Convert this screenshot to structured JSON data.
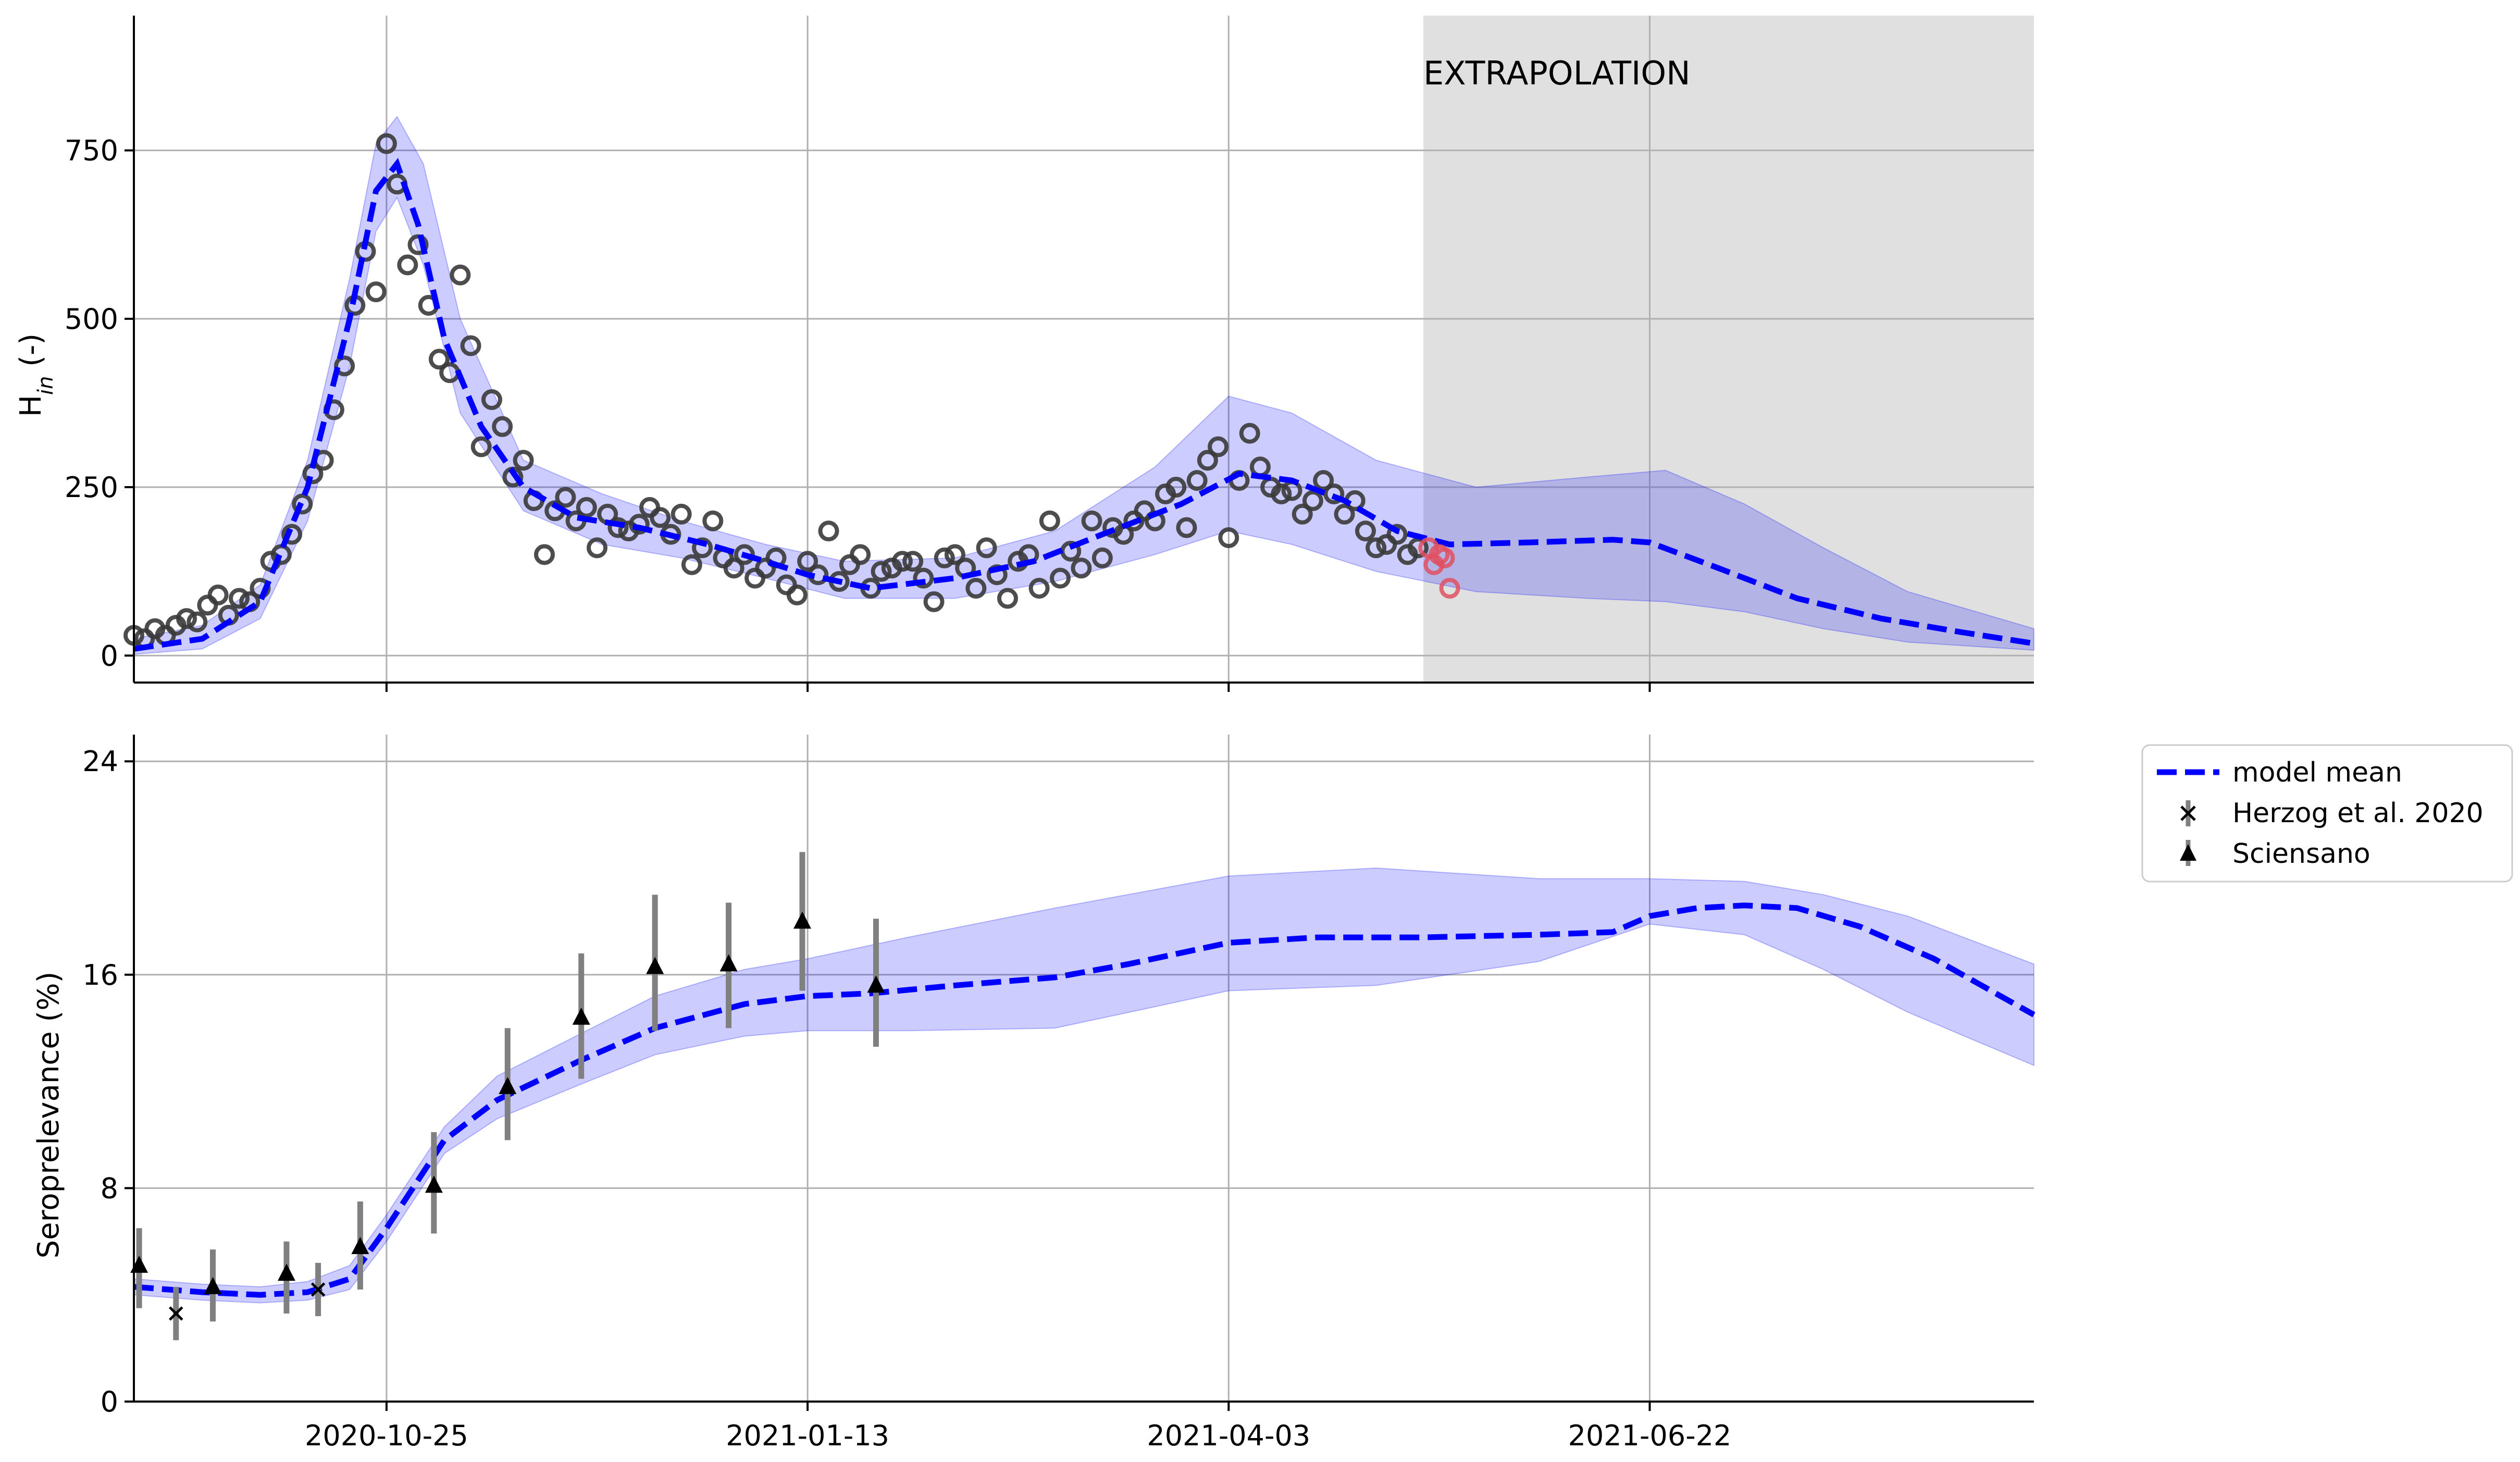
{
  "chart_data": [
    {
      "type": "line",
      "panel": "top",
      "ylabel": "H_in (-)",
      "ylim": [
        -40,
        950
      ],
      "yticks": [
        0,
        250,
        500,
        750
      ],
      "x_dates_range": [
        "2020-09-07",
        "2021-09-03"
      ],
      "xticks": [
        "2020-10-25",
        "2021-01-13",
        "2021-04-03",
        "2021-06-22"
      ],
      "grid": true,
      "annotation": "EXTRAPOLATION",
      "extrapolation_region": [
        "2021-05-10",
        "2021-09-03"
      ],
      "model_mean": {
        "x": [
          "2020-09-07",
          "2020-09-20",
          "2020-10-01",
          "2020-10-10",
          "2020-10-18",
          "2020-10-23",
          "2020-10-27",
          "2020-10-31",
          "2020-11-05",
          "2020-11-12",
          "2020-11-20",
          "2020-11-30",
          "2020-12-12",
          "2020-12-25",
          "2021-01-05",
          "2021-01-13",
          "2021-01-25",
          "2021-02-10",
          "2021-02-25",
          "2021-03-10",
          "2021-03-25",
          "2021-04-05",
          "2021-04-15",
          "2021-04-25",
          "2021-05-05",
          "2021-05-15",
          "2021-05-30",
          "2021-06-15",
          "2021-06-22",
          "2021-07-05",
          "2021-07-20",
          "2021-08-05",
          "2021-08-20",
          "2021-09-03"
        ],
        "y": [
          10,
          25,
          80,
          250,
          500,
          690,
          730,
          640,
          470,
          340,
          250,
          205,
          190,
          165,
          140,
          120,
          100,
          115,
          140,
          180,
          225,
          270,
          260,
          230,
          185,
          165,
          168,
          172,
          168,
          130,
          85,
          55,
          35,
          18
        ]
      },
      "band_upper": {
        "x": [
          "2020-09-07",
          "2020-09-20",
          "2020-10-01",
          "2020-10-10",
          "2020-10-18",
          "2020-10-23",
          "2020-10-27",
          "2020-11-01",
          "2020-11-08",
          "2020-11-20",
          "2020-12-05",
          "2020-12-20",
          "2021-01-05",
          "2021-01-20",
          "2021-02-10",
          "2021-03-01",
          "2021-03-20",
          "2021-04-03",
          "2021-04-15",
          "2021-05-01",
          "2021-05-20",
          "2021-06-10",
          "2021-06-25",
          "2021-07-10",
          "2021-07-25",
          "2021-08-10",
          "2021-09-03"
        ],
        "y": [
          25,
          45,
          105,
          290,
          560,
          760,
          800,
          730,
          500,
          290,
          240,
          200,
          165,
          140,
          145,
          185,
          280,
          385,
          360,
          290,
          250,
          265,
          275,
          225,
          160,
          95,
          40
        ]
      },
      "band_lower": {
        "x": [
          "2020-09-07",
          "2020-09-20",
          "2020-10-01",
          "2020-10-10",
          "2020-10-18",
          "2020-10-23",
          "2020-10-27",
          "2020-11-01",
          "2020-11-08",
          "2020-11-20",
          "2020-12-05",
          "2020-12-20",
          "2021-01-05",
          "2021-01-20",
          "2021-02-10",
          "2021-03-01",
          "2021-03-20",
          "2021-04-03",
          "2021-04-15",
          "2021-05-01",
          "2021-05-20",
          "2021-06-10",
          "2021-06-25",
          "2021-07-10",
          "2021-07-25",
          "2021-08-10",
          "2021-09-03"
        ],
        "y": [
          2,
          10,
          55,
          200,
          430,
          630,
          680,
          580,
          360,
          215,
          165,
          145,
          115,
          85,
          85,
          110,
          150,
          185,
          165,
          125,
          95,
          85,
          80,
          65,
          40,
          20,
          8
        ]
      },
      "observed": {
        "x": [
          "2020-09-07",
          "2020-09-09",
          "2020-09-11",
          "2020-09-13",
          "2020-09-15",
          "2020-09-17",
          "2020-09-19",
          "2020-09-21",
          "2020-09-23",
          "2020-09-25",
          "2020-09-27",
          "2020-09-29",
          "2020-10-01",
          "2020-10-03",
          "2020-10-05",
          "2020-10-07",
          "2020-10-09",
          "2020-10-11",
          "2020-10-13",
          "2020-10-15",
          "2020-10-17",
          "2020-10-19",
          "2020-10-21",
          "2020-10-23",
          "2020-10-25",
          "2020-10-27",
          "2020-10-29",
          "2020-10-31",
          "2020-11-02",
          "2020-11-04",
          "2020-11-06",
          "2020-11-08",
          "2020-11-10",
          "2020-11-12",
          "2020-11-14",
          "2020-11-16",
          "2020-11-18",
          "2020-11-20",
          "2020-11-22",
          "2020-11-24",
          "2020-11-26",
          "2020-11-28",
          "2020-11-30",
          "2020-12-02",
          "2020-12-04",
          "2020-12-06",
          "2020-12-08",
          "2020-12-10",
          "2020-12-12",
          "2020-12-14",
          "2020-12-16",
          "2020-12-18",
          "2020-12-20",
          "2020-12-22",
          "2020-12-24",
          "2020-12-26",
          "2020-12-28",
          "2020-12-30",
          "2021-01-01",
          "2021-01-03",
          "2021-01-05",
          "2021-01-07",
          "2021-01-09",
          "2021-01-11",
          "2021-01-13",
          "2021-01-15",
          "2021-01-17",
          "2021-01-19",
          "2021-01-21",
          "2021-01-23",
          "2021-01-25",
          "2021-01-27",
          "2021-01-29",
          "2021-01-31",
          "2021-02-02",
          "2021-02-04",
          "2021-02-06",
          "2021-02-08",
          "2021-02-10",
          "2021-02-12",
          "2021-02-14",
          "2021-02-16",
          "2021-02-18",
          "2021-02-20",
          "2021-02-22",
          "2021-02-24",
          "2021-02-26",
          "2021-02-28",
          "2021-03-02",
          "2021-03-04",
          "2021-03-06",
          "2021-03-08",
          "2021-03-10",
          "2021-03-12",
          "2021-03-14",
          "2021-03-16",
          "2021-03-18",
          "2021-03-20",
          "2021-03-22",
          "2021-03-24",
          "2021-03-26",
          "2021-03-28",
          "2021-03-30",
          "2021-04-01",
          "2021-04-03",
          "2021-04-05",
          "2021-04-07",
          "2021-04-09",
          "2021-04-11",
          "2021-04-13",
          "2021-04-15",
          "2021-04-17",
          "2021-04-19",
          "2021-04-21",
          "2021-04-23",
          "2021-04-25",
          "2021-04-27",
          "2021-04-29",
          "2021-05-01",
          "2021-05-03",
          "2021-05-05",
          "2021-05-07",
          "2021-05-09"
        ],
        "y": [
          30,
          25,
          40,
          30,
          45,
          55,
          50,
          75,
          90,
          60,
          85,
          80,
          100,
          140,
          150,
          180,
          225,
          270,
          290,
          365,
          430,
          520,
          600,
          540,
          760,
          700,
          580,
          610,
          520,
          440,
          420,
          565,
          460,
          310,
          380,
          340,
          265,
          290,
          230,
          150,
          215,
          235,
          200,
          220,
          160,
          210,
          190,
          185,
          195,
          220,
          205,
          180,
          210,
          135,
          160,
          200,
          145,
          130,
          150,
          115,
          130,
          145,
          105,
          90,
          140,
          120,
          185,
          110,
          135,
          150,
          100,
          125,
          130,
          140,
          140,
          115,
          80,
          145,
          150,
          130,
          100,
          160,
          120,
          85,
          140,
          150,
          100,
          200,
          115,
          155,
          130,
          200,
          145,
          190,
          180,
          200,
          215,
          200,
          240,
          250,
          190,
          260,
          290,
          310,
          175,
          260,
          330,
          280,
          250,
          240,
          245,
          210,
          230,
          260,
          240,
          210,
          230,
          185,
          160,
          165,
          180,
          150,
          160
        ]
      },
      "extrapolated_observed": {
        "x": [
          "2021-05-11",
          "2021-05-12",
          "2021-05-13",
          "2021-05-14",
          "2021-05-15"
        ],
        "y": [
          160,
          135,
          150,
          145,
          100
        ]
      }
    },
    {
      "type": "line",
      "panel": "bottom",
      "ylabel": "Seroprelevance (%)",
      "ylim": [
        0,
        25
      ],
      "yticks": [
        0,
        8,
        16,
        24
      ],
      "x_dates_range": [
        "2020-09-07",
        "2021-09-03"
      ],
      "xticks": [
        "2020-10-25",
        "2021-01-13",
        "2021-04-03",
        "2021-06-22"
      ],
      "grid": true,
      "legend": {
        "placement": "outside-right",
        "entries": [
          "model mean",
          "Herzog et al. 2020",
          "Sciensano"
        ]
      },
      "model_mean": {
        "x": [
          "2020-09-07",
          "2020-09-20",
          "2020-10-01",
          "2020-10-10",
          "2020-10-18",
          "2020-10-25",
          "2020-11-05",
          "2020-11-15",
          "2020-12-01",
          "2020-12-15",
          "2021-01-01",
          "2021-01-13",
          "2021-01-25",
          "2021-02-10",
          "2021-03-01",
          "2021-03-15",
          "2021-04-03",
          "2021-04-20",
          "2021-05-10",
          "2021-06-01",
          "2021-06-15",
          "2021-06-22",
          "2021-07-01",
          "2021-07-10",
          "2021-07-20",
          "2021-08-01",
          "2021-08-15",
          "2021-09-03"
        ],
        "y": [
          4.3,
          4.1,
          4.0,
          4.1,
          4.6,
          6.5,
          9.8,
          11.3,
          12.8,
          14.0,
          14.9,
          15.2,
          15.3,
          15.6,
          15.9,
          16.4,
          17.2,
          17.4,
          17.4,
          17.5,
          17.6,
          18.2,
          18.5,
          18.6,
          18.5,
          17.8,
          16.6,
          14.5
        ]
      },
      "band_upper": {
        "x": [
          "2020-09-07",
          "2020-09-20",
          "2020-10-01",
          "2020-10-10",
          "2020-10-18",
          "2020-10-25",
          "2020-11-05",
          "2020-11-15",
          "2020-12-01",
          "2020-12-15",
          "2021-01-01",
          "2021-01-13",
          "2021-02-01",
          "2021-03-01",
          "2021-04-03",
          "2021-05-01",
          "2021-06-01",
          "2021-06-22",
          "2021-07-10",
          "2021-07-25",
          "2021-08-10",
          "2021-09-03"
        ],
        "y": [
          4.6,
          4.4,
          4.3,
          4.5,
          5.1,
          7.0,
          10.3,
          12.2,
          13.8,
          15.2,
          16.2,
          16.6,
          17.4,
          18.5,
          19.7,
          20.0,
          19.6,
          19.6,
          19.5,
          19.0,
          18.2,
          16.4
        ]
      },
      "band_lower": {
        "x": [
          "2020-09-07",
          "2020-09-20",
          "2020-10-01",
          "2020-10-10",
          "2020-10-18",
          "2020-10-25",
          "2020-11-05",
          "2020-11-15",
          "2020-12-01",
          "2020-12-15",
          "2021-01-01",
          "2021-01-13",
          "2021-02-01",
          "2021-03-01",
          "2021-03-20",
          "2021-04-03",
          "2021-05-01",
          "2021-06-01",
          "2021-06-22",
          "2021-07-10",
          "2021-07-25",
          "2021-08-10",
          "2021-09-03"
        ],
        "y": [
          4.0,
          3.8,
          3.7,
          3.8,
          4.2,
          6.0,
          9.3,
          10.6,
          11.9,
          13.0,
          13.7,
          13.9,
          13.9,
          14.0,
          14.8,
          15.4,
          15.6,
          16.5,
          17.9,
          17.5,
          16.2,
          14.6,
          12.6
        ]
      },
      "herzog": {
        "x": [
          "2020-09-15",
          "2020-10-12"
        ],
        "y": [
          3.3,
          4.2
        ],
        "err_low": [
          2.3,
          3.2
        ],
        "err_high": [
          4.3,
          5.2
        ]
      },
      "sciensano": {
        "x": [
          "2020-09-08",
          "2020-09-22",
          "2020-10-06",
          "2020-10-20",
          "2020-11-03",
          "2020-11-17",
          "2020-12-01",
          "2020-12-15",
          "2020-12-29",
          "2021-01-12",
          "2021-01-26"
        ],
        "y": [
          5.1,
          4.3,
          4.8,
          5.8,
          8.1,
          11.8,
          14.4,
          16.3,
          16.4,
          18.0,
          15.6
        ],
        "err_low": [
          3.5,
          3.0,
          3.3,
          4.2,
          6.3,
          9.8,
          12.1,
          13.9,
          14.0,
          15.4,
          13.3
        ],
        "err_high": [
          6.5,
          5.7,
          6.0,
          7.5,
          10.1,
          14.0,
          16.8,
          19.0,
          18.7,
          20.6,
          18.1
        ]
      }
    }
  ]
}
